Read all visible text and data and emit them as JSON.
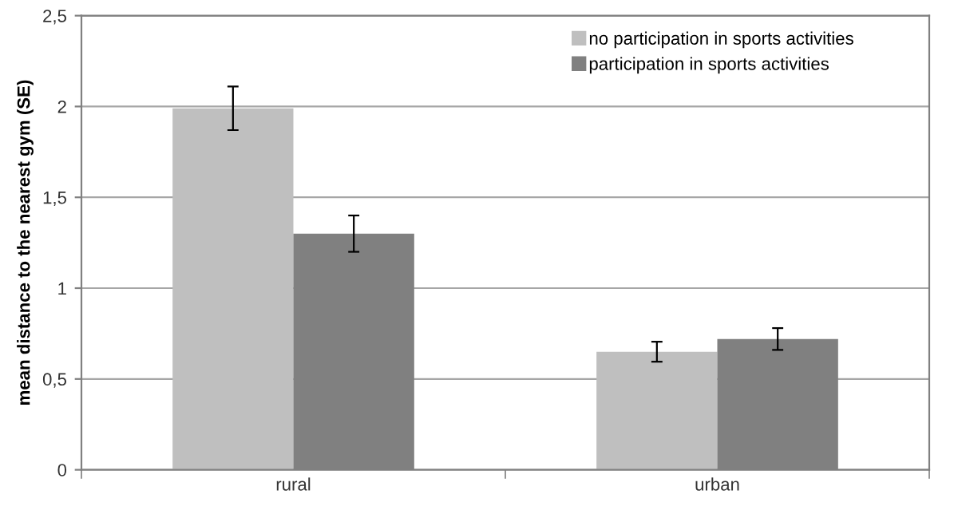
{
  "chart_data": {
    "type": "bar",
    "ylabel": "mean distance to the nearest gym (SE)",
    "categories": [
      "rural",
      "urban"
    ],
    "series": [
      {
        "name": "no participation in sports activities",
        "color": "#bfbfbf",
        "values": [
          1.99,
          0.65
        ],
        "errors": [
          0.12,
          0.055
        ]
      },
      {
        "name": "participation in sports activities",
        "color": "#808080",
        "values": [
          1.3,
          0.72
        ],
        "errors": [
          0.1,
          0.06
        ]
      }
    ],
    "ylim": [
      0,
      2.5
    ],
    "yticks": [
      0,
      {
        "value": 0.5,
        "label": "0,5"
      },
      1,
      {
        "value": 1.5,
        "label": "1,5"
      },
      2,
      {
        "value": 2.5,
        "label": "2,5"
      }
    ],
    "grid": "y",
    "legend": "top right"
  }
}
